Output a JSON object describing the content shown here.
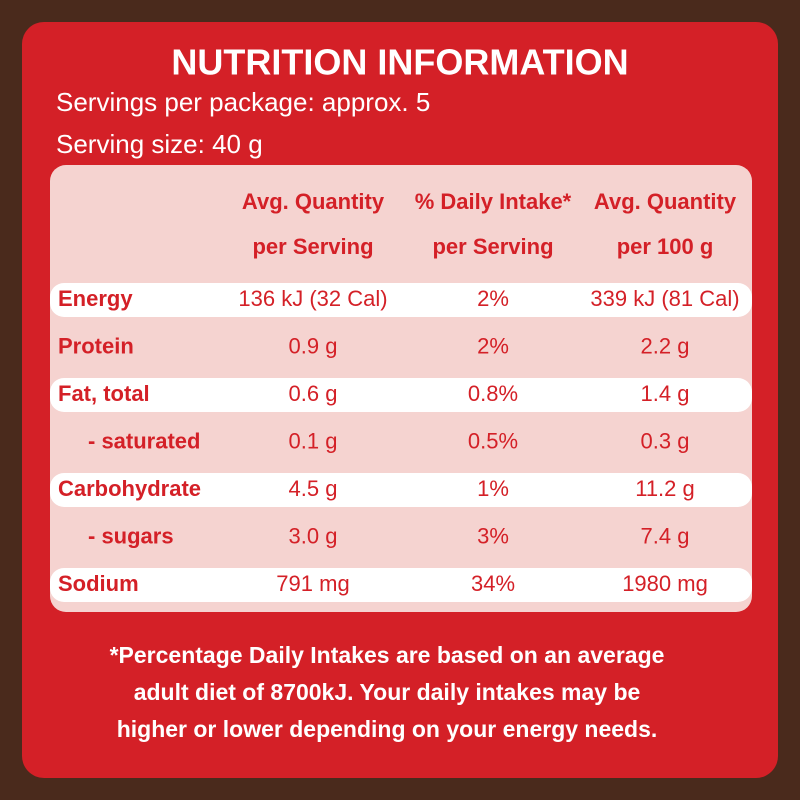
{
  "header": {
    "title": "NUTRITION INFORMATION",
    "servings": "Servings per package: approx. 5",
    "serving_size": "Serving size: 40 g"
  },
  "table": {
    "columns": [
      [
        "Avg. Quantity",
        "per Serving"
      ],
      [
        "% Daily Intake*",
        "per Serving"
      ],
      [
        "Avg. Quantity",
        "per 100 g"
      ]
    ],
    "rows": [
      [
        "Energy",
        "136 kJ (32 Cal)",
        "2%",
        "339 kJ (81 Cal)"
      ],
      [
        "Protein",
        "0.9 g",
        "2%",
        "2.2 g"
      ],
      [
        "Fat, total",
        "0.6 g",
        "0.8%",
        "1.4 g"
      ],
      [
        "- saturated",
        "0.1 g",
        "0.5%",
        "0.3 g"
      ],
      [
        "Carbohydrate",
        "4.5 g",
        "1%",
        "11.2 g"
      ],
      [
        "- sugars",
        "3.0 g",
        "3%",
        "7.4 g"
      ],
      [
        "Sodium",
        "791 mg",
        "34%",
        "1980 mg"
      ]
    ]
  },
  "footnote": [
    "*Percentage Daily Intakes are based on an average",
    "adult diet of 8700kJ. Your daily intakes may be",
    "higher or lower depending on your energy needs."
  ]
}
